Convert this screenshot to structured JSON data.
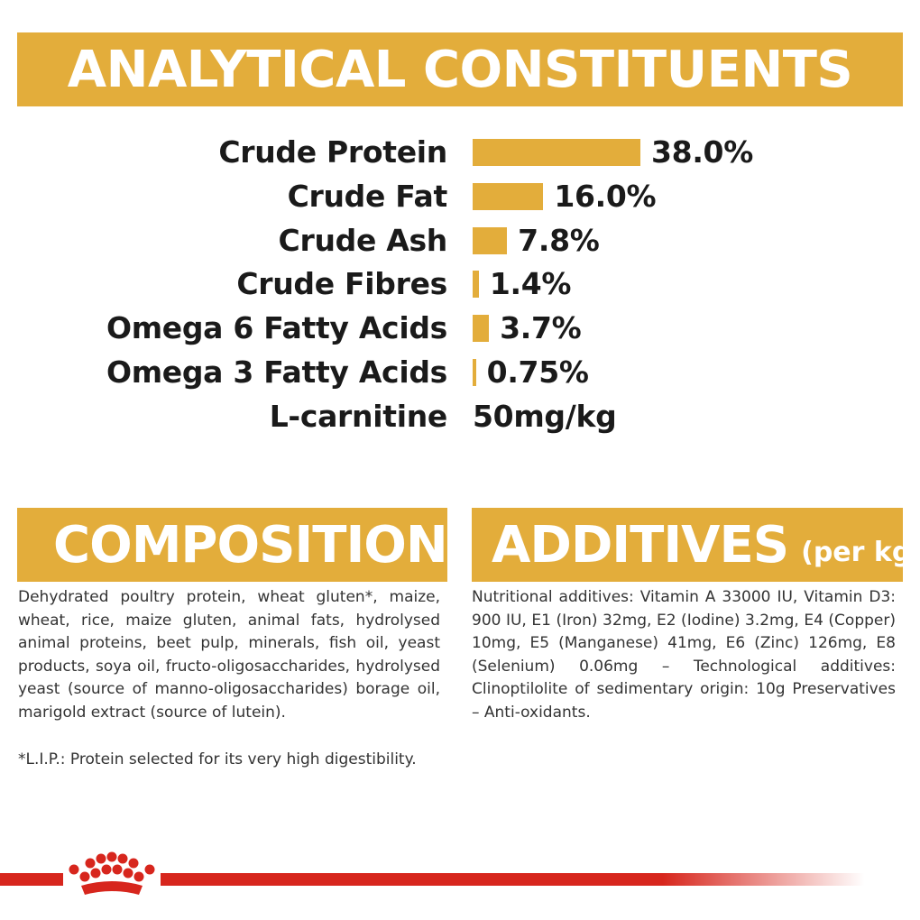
{
  "header": {
    "title": "ANALYTICAL CONSTITUENTS"
  },
  "chart_data": {
    "type": "bar",
    "orientation": "horizontal",
    "title": "ANALYTICAL CONSTITUENTS",
    "categories": [
      "Crude Protein",
      "Crude Fat",
      "Crude Ash",
      "Crude Fibres",
      "Omega 6 Fatty Acids",
      "Omega 3 Fatty Acids",
      "L-carnitine"
    ],
    "values": [
      38.0,
      16.0,
      7.8,
      1.4,
      3.7,
      0.75,
      null
    ],
    "unit": "%",
    "value_labels": [
      "38.0%",
      "16.0%",
      "7.8%",
      "1.4%",
      "3.7%",
      "0.75%",
      "50mg/kg"
    ],
    "xlim": [
      0,
      38.0
    ],
    "bar_color": "#e3ad3b",
    "grid": false,
    "legend": "none"
  },
  "composition": {
    "title": "COMPOSITION",
    "text": "Dehydrated poultry protein, wheat gluten*, maize, wheat, rice, maize gluten, animal fats, hydrolysed animal proteins, beet pulp, minerals, fish oil, yeast products, soya oil, fructo-oligosaccharides, hydrolysed yeast (source of manno-oligosaccharides) borage oil, marigold extract (source of lutein).",
    "note": "*L.I.P.: Protein selected for its very high digestibility."
  },
  "additives": {
    "title": "ADDITIVES",
    "title_suffix": "(per kg)",
    "text": "Nutritional additives: Vitamin A 33000 IU, Vitamin D3: 900 IU, E1 (Iron) 32mg, E2 (Iodine) 3.2mg, E4 (Copper) 10mg, E5 (Manganese) 41mg, E6 (Zinc) 126mg, E8 (Selenium) 0.06mg – Technological additives: Clinoptilolite of sedimentary origin: 10g Preservatives – Anti-oxidants."
  },
  "colors": {
    "accent": "#e3ad3b",
    "brand_red": "#d7261d"
  },
  "footer": {
    "logo_icon": "crown-icon"
  }
}
